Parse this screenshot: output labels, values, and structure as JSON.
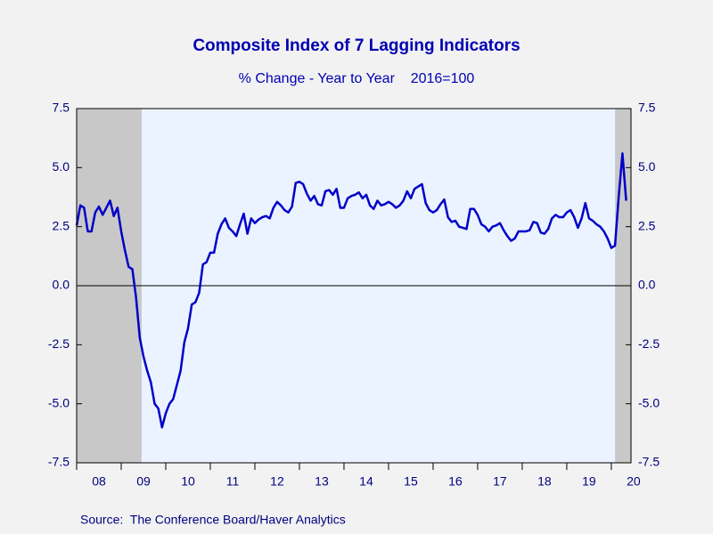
{
  "chart_data": {
    "type": "line",
    "title": "Composite Index of 7 Lagging Indicators",
    "subtitle": "% Change - Year to Year    2016=100",
    "source": "Source:  The Conference Board/Haver Analytics",
    "categories": [
      null,
      null,
      null,
      null,
      null,
      null,
      null,
      null,
      null,
      null,
      null,
      null,
      null,
      null,
      null,
      null,
      null,
      null,
      null,
      null,
      null,
      null,
      null,
      null,
      null,
      null,
      null,
      null,
      null,
      null,
      null,
      null,
      null,
      null,
      null,
      null,
      null,
      null,
      null,
      null,
      null,
      null,
      null,
      null,
      null,
      null,
      null,
      null,
      null,
      null,
      null,
      null,
      null,
      null,
      null,
      null,
      null,
      null,
      null,
      null,
      null,
      null,
      null,
      null,
      null,
      null,
      null,
      null,
      null,
      null,
      null,
      null,
      null,
      null,
      null,
      null,
      null,
      null,
      null,
      null,
      null,
      null,
      null,
      null,
      null,
      null,
      null,
      null,
      null,
      null,
      null,
      null,
      null,
      null,
      null,
      null,
      null,
      null,
      null,
      null,
      null,
      null,
      null,
      null,
      null,
      null,
      null,
      null,
      null,
      null,
      null,
      null,
      null,
      null,
      null,
      null,
      null,
      null,
      null,
      null,
      null,
      null,
      null,
      null,
      null,
      null,
      null,
      null,
      null,
      null,
      null,
      null,
      null,
      null,
      null,
      null,
      null,
      null,
      null,
      null,
      null,
      null,
      null,
      null,
      null,
      null,
      null,
      null,
      null
    ],
    "series": [
      {
        "color": "#0000c8",
        "values": [
          2.55,
          3.4,
          3.3,
          2.3,
          2.3,
          3.1,
          3.35,
          3.0,
          3.3,
          3.6,
          2.95,
          3.3,
          2.3,
          1.5,
          0.8,
          0.7,
          -0.5,
          -2.2,
          -3.0,
          -3.6,
          -4.1,
          -5.0,
          -5.2,
          -6.0,
          -5.4,
          -5.0,
          -4.8,
          -4.2,
          -3.6,
          -2.4,
          -1.8,
          -0.8,
          -0.7,
          -0.3,
          0.9,
          1.0,
          1.4,
          1.4,
          2.2,
          2.6,
          2.85,
          2.45,
          2.3,
          2.1,
          2.6,
          3.05,
          2.2,
          2.85,
          2.65,
          2.8,
          2.9,
          2.95,
          2.85,
          3.3,
          3.55,
          3.4,
          3.2,
          3.1,
          3.35,
          4.35,
          4.4,
          4.3,
          3.9,
          3.6,
          3.8,
          3.45,
          3.4,
          4.0,
          4.05,
          3.85,
          4.1,
          3.3,
          3.3,
          3.7,
          3.8,
          3.85,
          3.95,
          3.7,
          3.85,
          3.4,
          3.25,
          3.6,
          3.4,
          3.45,
          3.55,
          3.45,
          3.3,
          3.4,
          3.6,
          4.0,
          3.7,
          4.1,
          4.2,
          4.3,
          3.5,
          3.2,
          3.1,
          3.2,
          3.45,
          3.65,
          2.9,
          2.7,
          2.75,
          2.5,
          2.45,
          2.4,
          3.25,
          3.25,
          3.0,
          2.6,
          2.5,
          2.3,
          2.5,
          2.55,
          2.65,
          2.35,
          2.1,
          1.9,
          2.0,
          2.3,
          2.3,
          2.3,
          2.35,
          2.7,
          2.65,
          2.25,
          2.2,
          2.4,
          2.85,
          3.0,
          2.9,
          2.9,
          3.1,
          3.2,
          2.9,
          2.45,
          2.85,
          3.5,
          2.85,
          2.75,
          2.6,
          2.5,
          2.3,
          2.0,
          1.6,
          1.7,
          3.8,
          5.6,
          3.6
        ]
      }
    ],
    "xlim": [
      0,
      149.3
    ],
    "xticks": [
      {
        "value": 0,
        "label": "08"
      },
      {
        "value": 12,
        "label": "09"
      },
      {
        "value": 24,
        "label": "10"
      },
      {
        "value": 36,
        "label": "11"
      },
      {
        "value": 48,
        "label": "12"
      },
      {
        "value": 60,
        "label": "13"
      },
      {
        "value": 72,
        "label": "14"
      },
      {
        "value": 84,
        "label": "15"
      },
      {
        "value": 96,
        "label": "16"
      },
      {
        "value": 108,
        "label": "17"
      },
      {
        "value": 120,
        "label": "18"
      },
      {
        "value": 132,
        "label": "19"
      },
      {
        "value": 144,
        "label": "20"
      }
    ],
    "ylim": [
      -7.5,
      7.5
    ],
    "yticks": [
      -7.5,
      -2.5,
      2.5,
      7.5,
      {
        "value": -5,
        "label": "-5.0"
      },
      {
        "value": 0,
        "label": "0.0"
      },
      {
        "value": 5,
        "label": "5.0"
      }
    ],
    "shaded_ranges": [
      [
        0,
        17.5
      ],
      [
        145,
        149.3
      ]
    ],
    "shade_color": "#c8c8c8",
    "plot_color": "#eaf3ff"
  }
}
